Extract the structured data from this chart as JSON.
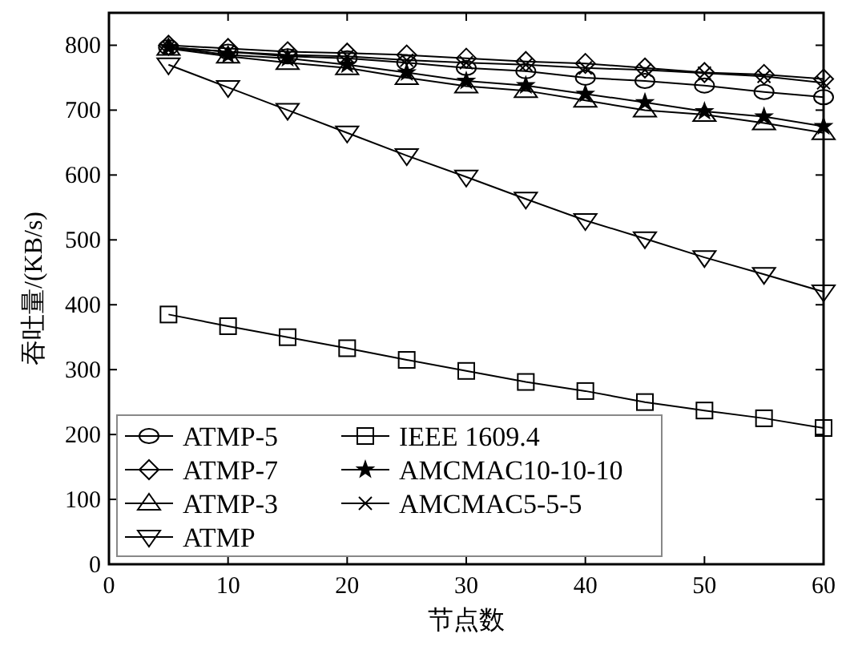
{
  "chart_data": {
    "type": "line",
    "xlabel": "节点数",
    "ylabel": "吞吐量/(KB/s)",
    "x": [
      5,
      10,
      15,
      20,
      25,
      30,
      35,
      40,
      45,
      50,
      55,
      60
    ],
    "xlim": [
      0,
      60
    ],
    "xticks": [
      0,
      10,
      20,
      30,
      40,
      50,
      60
    ],
    "ylim": [
      0,
      850
    ],
    "yticks": [
      0,
      100,
      200,
      300,
      400,
      500,
      600,
      700,
      800
    ],
    "grid": false,
    "legend": "bottom left",
    "series": [
      {
        "name": "ATMP-5",
        "color": "#000000",
        "marker": "circle",
        "values": [
          797,
          790,
          783,
          780,
          773,
          765,
          760,
          750,
          745,
          738,
          728,
          720
        ]
      },
      {
        "name": "ATMP-7",
        "color": "#000000",
        "marker": "diamond",
        "values": [
          800,
          795,
          790,
          788,
          785,
          780,
          775,
          772,
          765,
          758,
          755,
          748
        ]
      },
      {
        "name": "ATMP-3",
        "color": "#000000",
        "marker": "triangle",
        "values": [
          795,
          783,
          773,
          765,
          750,
          737,
          730,
          715,
          700,
          693,
          680,
          665
        ]
      },
      {
        "name": "ATMP",
        "color": "#000000",
        "marker": "triangle-down",
        "values": [
          770,
          735,
          700,
          665,
          630,
          597,
          563,
          530,
          502,
          473,
          447,
          420
        ]
      },
      {
        "name": "IEEE 1609.4",
        "color": "#000000",
        "marker": "square",
        "values": [
          385,
          367,
          350,
          333,
          315,
          298,
          281,
          267,
          250,
          237,
          225,
          210
        ]
      },
      {
        "name": "AMCMAC10-10-10",
        "color": "#000000",
        "marker": "star",
        "values": [
          797,
          785,
          780,
          770,
          758,
          745,
          738,
          725,
          712,
          698,
          690,
          675
        ]
      },
      {
        "name": "AMCMAC5-5-5",
        "color": "#000000",
        "marker": "cross",
        "values": [
          797,
          790,
          785,
          783,
          777,
          773,
          770,
          765,
          762,
          757,
          752,
          742
        ]
      }
    ]
  }
}
